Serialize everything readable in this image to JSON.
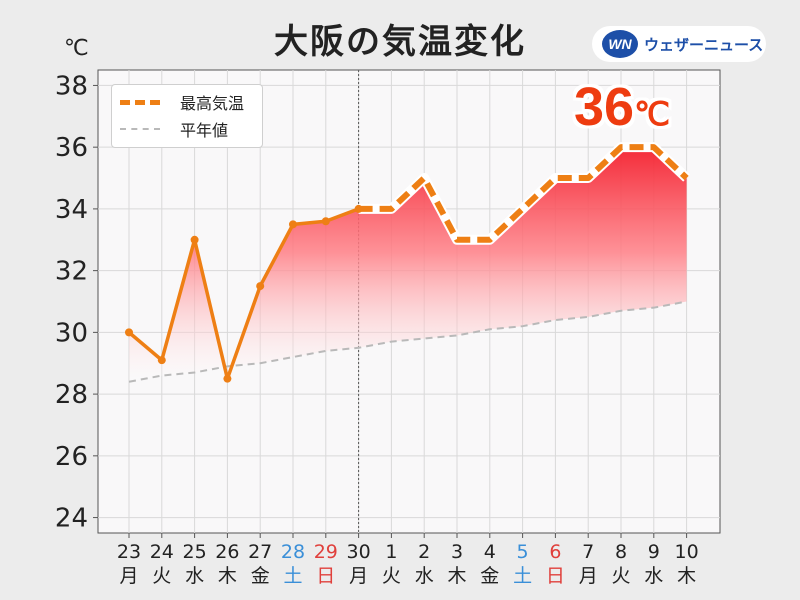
{
  "title": "大阪の気温変化",
  "unit": "℃",
  "brand": {
    "logo": "WN",
    "name": "ウェザーニュース"
  },
  "peak": {
    "value": "36",
    "unit": "℃"
  },
  "colors": {
    "max_line": "#ee7f14",
    "normal_line": "#b9b9b9",
    "fill": "#ff8a8e",
    "peak_text": "#ee3c10",
    "saturday": "#3a8fd8",
    "sunday": "#e0403c"
  },
  "chart_data": {
    "type": "line",
    "title": "大阪の気温変化",
    "ylabel": "℃",
    "ylim": [
      23.5,
      38.5
    ],
    "yticks": [
      24,
      26,
      28,
      30,
      32,
      34,
      36,
      38
    ],
    "grid": true,
    "legend": "top-left",
    "x": [
      {
        "day": "23",
        "weekday": "月"
      },
      {
        "day": "24",
        "weekday": "火"
      },
      {
        "day": "25",
        "weekday": "水"
      },
      {
        "day": "26",
        "weekday": "木"
      },
      {
        "day": "27",
        "weekday": "金"
      },
      {
        "day": "28",
        "weekday": "土"
      },
      {
        "day": "29",
        "weekday": "日"
      },
      {
        "day": "30",
        "weekday": "月"
      },
      {
        "day": "1",
        "weekday": "火"
      },
      {
        "day": "2",
        "weekday": "水"
      },
      {
        "day": "3",
        "weekday": "木"
      },
      {
        "day": "4",
        "weekday": "金"
      },
      {
        "day": "5",
        "weekday": "土"
      },
      {
        "day": "6",
        "weekday": "日"
      },
      {
        "day": "7",
        "weekday": "月"
      },
      {
        "day": "8",
        "weekday": "火"
      },
      {
        "day": "9",
        "weekday": "水"
      },
      {
        "day": "10",
        "weekday": "木"
      }
    ],
    "today_index": 7,
    "series": [
      {
        "name": "最高気温",
        "values": [
          30.0,
          29.1,
          33.0,
          28.5,
          31.5,
          33.5,
          33.6,
          34.0,
          34.0,
          35.0,
          33.0,
          33.0,
          34.0,
          35.0,
          35.0,
          36.0,
          36.0,
          35.0
        ]
      },
      {
        "name": "平年値",
        "values": [
          28.4,
          28.6,
          28.7,
          28.9,
          29.0,
          29.2,
          29.4,
          29.5,
          29.7,
          29.8,
          29.9,
          30.1,
          30.2,
          30.4,
          30.5,
          30.7,
          30.8,
          31.0
        ]
      }
    ]
  }
}
